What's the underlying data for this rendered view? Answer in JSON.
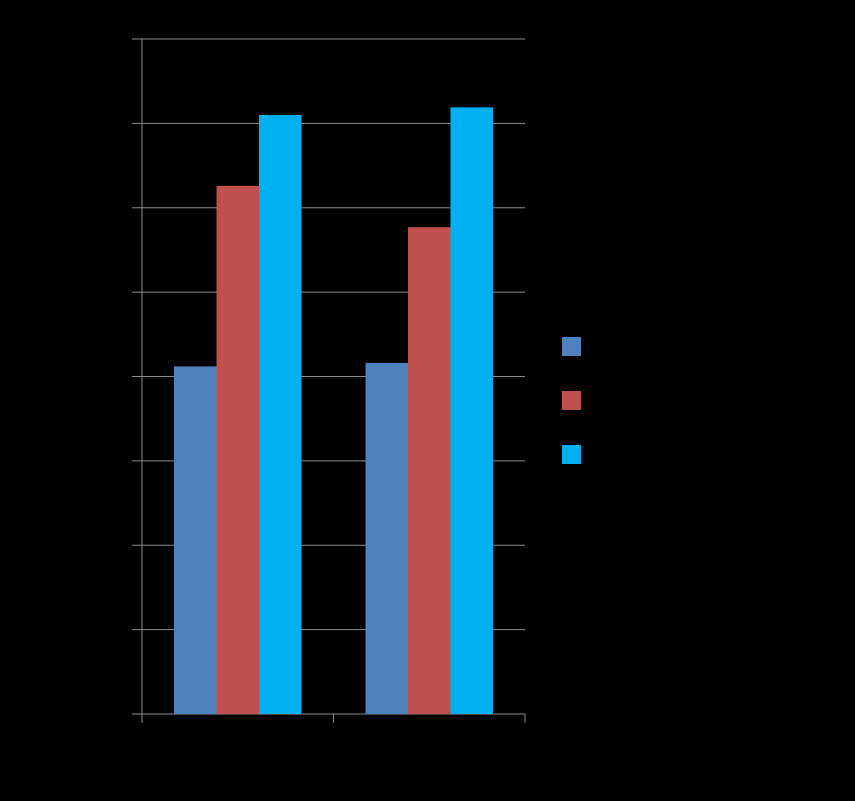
{
  "chart_data": {
    "type": "bar",
    "categories": [
      null,
      null
    ],
    "series": [
      {
        "color": "#4f81bd",
        "values": [
          4.12,
          4.16
        ]
      },
      {
        "color": "#c0504d",
        "values": [
          6.26,
          5.77
        ]
      },
      {
        "color": "#00b0f0",
        "values": [
          7.1,
          7.19
        ]
      }
    ],
    "ylim": [
      0,
      8
    ],
    "yticks": [
      0,
      1,
      2,
      3,
      4,
      5,
      6,
      7,
      8
    ],
    "grid": true
  }
}
